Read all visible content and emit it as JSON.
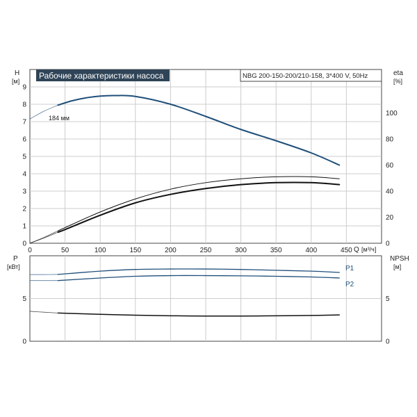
{
  "chart_data": [
    {
      "id": "top",
      "type": "line",
      "title": "Рабочие характеристики насоса",
      "model": "NBG 200-150-200/210-158, 3*400 V, 50Hz",
      "left_axis": {
        "label": "H",
        "unit": "[м]",
        "lim": [
          0,
          10
        ],
        "ticks": [
          0,
          1,
          2,
          3,
          4,
          5,
          6,
          7,
          8,
          9
        ]
      },
      "right_axis": {
        "label": "eta",
        "unit": "[%]",
        "lim": [
          0,
          133.33
        ],
        "ticks": [
          0,
          20,
          40,
          60,
          80,
          100
        ]
      },
      "x_axis": {
        "label": "Q",
        "unit": "[м³/ч]",
        "lim": [
          0,
          500
        ],
        "ticks": [
          0,
          50,
          100,
          150,
          200,
          250,
          300,
          350,
          400,
          450
        ]
      },
      "grid": true,
      "curve_label": "184 мм",
      "series": [
        {
          "key": "H",
          "axis": "left",
          "color": "#1f4e79",
          "width": 2.0,
          "dash_x": [
            0,
            2,
            20,
            40
          ],
          "dash_y": [
            7.15,
            7.2,
            7.6,
            7.95
          ],
          "x": [
            40,
            60,
            80,
            100,
            120,
            150,
            200,
            250,
            300,
            350,
            400,
            440
          ],
          "y": [
            7.95,
            8.2,
            8.37,
            8.47,
            8.5,
            8.45,
            8.0,
            7.3,
            6.55,
            5.9,
            5.2,
            4.5
          ]
        },
        {
          "key": "eta_thin",
          "axis": "right",
          "color": "#111111",
          "width": 1.0,
          "dash_x": [
            0,
            20,
            40
          ],
          "dash_y": [
            0,
            4.5,
            9.5
          ],
          "x": [
            40,
            50,
            100,
            150,
            200,
            250,
            300,
            350,
            400,
            440
          ],
          "y": [
            9.5,
            12,
            24,
            34,
            41.5,
            46.5,
            49.5,
            51,
            51,
            49.5
          ]
        },
        {
          "key": "eta_thick",
          "axis": "right",
          "color": "#111111",
          "width": 2.0,
          "dash_x": [
            0,
            20,
            40
          ],
          "dash_y": [
            0,
            4,
            8.5
          ],
          "x": [
            40,
            50,
            100,
            150,
            200,
            250,
            300,
            350,
            400,
            440
          ],
          "y": [
            8.5,
            10.5,
            21.5,
            31,
            37.5,
            42,
            45,
            46.5,
            46.5,
            45
          ]
        }
      ]
    },
    {
      "id": "bottom",
      "type": "line",
      "left_axis": {
        "label": "P",
        "unit": "[кВт]",
        "lim": [
          0,
          10
        ],
        "ticks": [
          0,
          5
        ]
      },
      "right_axis": {
        "label": "NPSH",
        "unit": "[м]",
        "lim": [
          0,
          10
        ],
        "ticks": [
          0,
          5
        ]
      },
      "x_axis": {
        "lim": [
          0,
          500
        ],
        "ticks": [
          0,
          50,
          100,
          150,
          200,
          250,
          300,
          350,
          400,
          450
        ]
      },
      "grid": true,
      "series": [
        {
          "key": "P1",
          "name": "P1",
          "axis": "left",
          "color": "#1f4e79",
          "width": 1.3,
          "dash_x": [
            0,
            20,
            40
          ],
          "dash_y": [
            7.8,
            7.8,
            7.82
          ],
          "x": [
            40,
            100,
            150,
            200,
            250,
            300,
            350,
            400,
            440
          ],
          "y": [
            7.82,
            8.2,
            8.4,
            8.45,
            8.45,
            8.4,
            8.3,
            8.2,
            8.05
          ]
        },
        {
          "key": "P2",
          "name": "P2",
          "axis": "left",
          "color": "#1f4e79",
          "width": 1.3,
          "dash_x": [
            0,
            20,
            40
          ],
          "dash_y": [
            7.1,
            7.1,
            7.1
          ],
          "x": [
            40,
            100,
            150,
            200,
            250,
            300,
            350,
            400,
            440
          ],
          "y": [
            7.1,
            7.4,
            7.6,
            7.68,
            7.68,
            7.65,
            7.6,
            7.52,
            7.4
          ]
        },
        {
          "key": "NPSH",
          "axis": "right",
          "color": "#111111",
          "width": 1.5,
          "dash_x": [
            0,
            20,
            40
          ],
          "dash_y": [
            3.5,
            3.4,
            3.3
          ],
          "x": [
            40,
            100,
            150,
            200,
            250,
            300,
            350,
            400,
            440
          ],
          "y": [
            3.3,
            3.15,
            3.05,
            2.98,
            2.95,
            2.95,
            2.98,
            3.02,
            3.08
          ]
        }
      ]
    }
  ]
}
